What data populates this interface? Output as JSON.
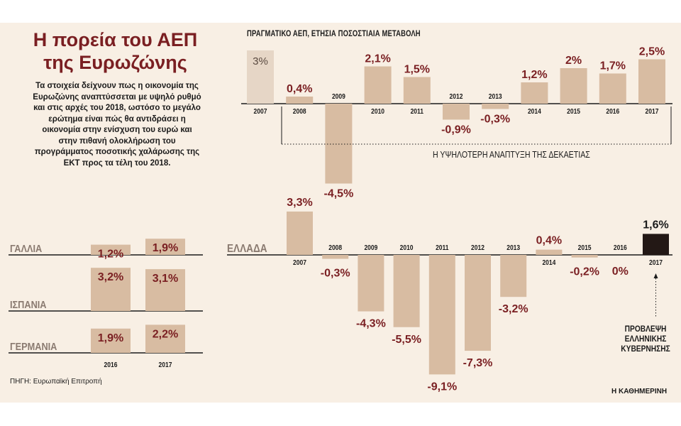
{
  "header": {
    "title_line1": "Η πορεία του ΑΕΠ",
    "title_line2": "της Ευρωζώνης",
    "intro": "Τα στοιχεία δείχνουν πως η οικονομία της Ευρωζώνης αναπτύσσεται με υψηλό ρυθμό και στις αρχές του 2018, ωστόσο το μεγάλο ερώτημα είναι πώς θα αντιδράσει η οικονομία στην ενίσχυση του ευρώ και στην πιθανή ολοκλήρωση του προγράμματος ποσοτικής χαλάρωσης της ΕΚΤ προς τα τέλη του 2018."
  },
  "subtitle": "ΠΡΑΓΜΑΤΙΚΟ ΑΕΠ, ΕΤΗΣΙΑ ΠΟΣΟΣΤΙΑΙΑ ΜΕΤΑΒΟΛΗ",
  "eurozone_note": "Η ΥΨΗΛΟΤΕΡΗ ΑΝΑΠΤΥΞΗ ΤΗΣ ΔΕΚΑΕΤΙΑΣ",
  "greece_note": [
    "ΠΡΟΒΛΕΨΗ",
    "ΕΛΛΗΝΙΚΗΣ",
    "ΚΥΒΕΡΝΗΣΗΣ"
  ],
  "footer": {
    "source": "ΠΗΓΗ: Ευρωπαϊκή Επιτροπή",
    "brand": "Η ΚΑΘΗΜΕΡΙΝΗ"
  },
  "colors": {
    "background": "#f8efe4",
    "bar": "#d8bca2",
    "bar_light": "#e6d6c6",
    "bar_forecast": "#231815",
    "value_text": "#7a1f22",
    "text": "#1b1b1b"
  },
  "chart_data": [
    {
      "type": "bar",
      "title": "Ευρωζώνη",
      "categories": [
        "2007",
        "2008",
        "2009",
        "2010",
        "2011",
        "2012",
        "2013",
        "2014",
        "2015",
        "2016",
        "2017"
      ],
      "values": [
        3.0,
        0.4,
        -4.5,
        2.1,
        1.5,
        -0.9,
        -0.3,
        1.2,
        2.0,
        1.7,
        2.5
      ],
      "labels": [
        "3%",
        "0,4%",
        "-4,5%",
        "2,1%",
        "1,5%",
        "-0,9%",
        "-0,3%",
        "1,2%",
        "2%",
        "1,7%",
        "2,5%"
      ]
    },
    {
      "type": "bar",
      "title": "ΕΛΛΑΔΑ",
      "categories": [
        "2007",
        "2008",
        "2009",
        "2010",
        "2011",
        "2012",
        "2013",
        "2014",
        "2015",
        "2016",
        "2017"
      ],
      "values": [
        3.3,
        -0.3,
        -4.3,
        -5.5,
        -9.1,
        -7.3,
        -3.2,
        0.4,
        -0.2,
        0.0,
        1.6
      ],
      "labels": [
        "3,3%",
        "-0,3%",
        "-4,3%",
        "-5,5%",
        "-9,1%",
        "-7,3%",
        "-3,2%",
        "0,4%",
        "-0,2%",
        "0%",
        "1,6%"
      ]
    },
    {
      "type": "bar",
      "categories": [
        "2016",
        "2017"
      ],
      "series": [
        {
          "name": "ΓΑΛΛΙΑ",
          "values": [
            1.2,
            1.9
          ],
          "labels": [
            "1,2%",
            "1,9%"
          ]
        },
        {
          "name": "ΙΣΠΑΝΙΑ",
          "values": [
            3.2,
            3.1
          ],
          "labels": [
            "3,2%",
            "3,1%"
          ]
        },
        {
          "name": "ΓΕΡΜΑΝΙΑ",
          "values": [
            1.9,
            2.2
          ],
          "labels": [
            "1,9%",
            "2,2%"
          ]
        }
      ]
    }
  ]
}
